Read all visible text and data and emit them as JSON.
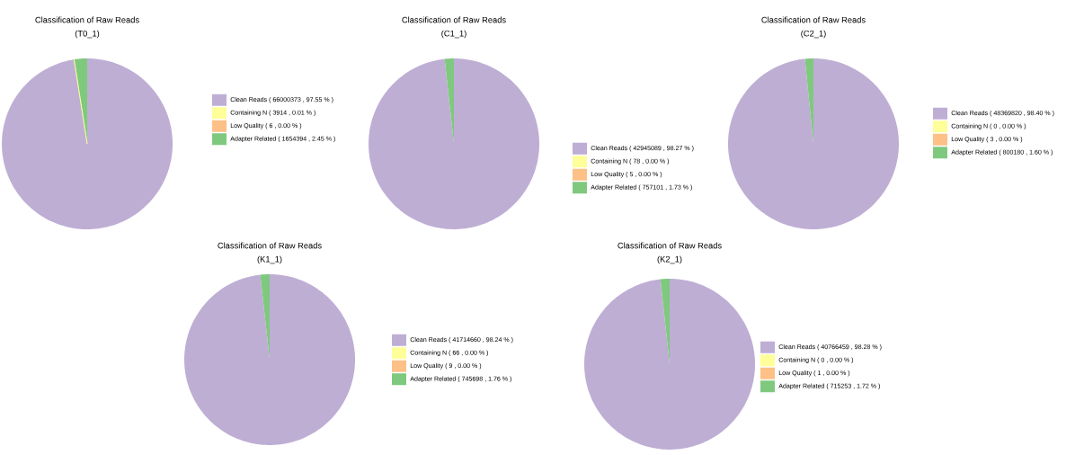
{
  "chart_data": [
    {
      "type": "pie",
      "title": "Classification of Raw Reads",
      "subtitle": "(T0_1)",
      "categories": [
        "Clean Reads",
        "Containing N",
        "Low Quality",
        "Adapter Related"
      ],
      "values": [
        97.55,
        0.01,
        0.0,
        2.45
      ],
      "value_labels": [
        "( 66000373 , 97.55 % )",
        "( 3914 , 0.01 % )",
        "( 6 , 0.00 % )",
        "( 1654394 , 2.45 % )"
      ],
      "colors": [
        "#beaed4",
        "#ffff99",
        "#fdc086",
        "#7fc97f"
      ],
      "legend": "right"
    },
    {
      "type": "pie",
      "title": "Classification of Raw Reads",
      "subtitle": "(C1_1)",
      "categories": [
        "Clean Reads",
        "Containing N",
        "Low Quality",
        "Adapter Related"
      ],
      "values": [
        98.27,
        0.0,
        0.0,
        1.73
      ],
      "value_labels": [
        "( 42945089 , 98.27 % )",
        "( 78 , 0.00 % )",
        "( 5 , 0.00 % )",
        "( 757101 , 1.73 % )"
      ],
      "colors": [
        "#beaed4",
        "#ffff99",
        "#fdc086",
        "#7fc97f"
      ],
      "legend": "right"
    },
    {
      "type": "pie",
      "title": "Classification of Raw Reads",
      "subtitle": "(C2_1)",
      "categories": [
        "Clean Reads",
        "Containing N",
        "Low Quality",
        "Adapter Related"
      ],
      "values": [
        98.4,
        0.0,
        0.0,
        1.6
      ],
      "value_labels": [
        "( 48369820 , 98.40 % )",
        "( 0 , 0.00 % )",
        "( 3 , 0.00 % )",
        "( 800180 , 1.60 % )"
      ],
      "colors": [
        "#beaed4",
        "#ffff99",
        "#fdc086",
        "#7fc97f"
      ],
      "legend": "right"
    },
    {
      "type": "pie",
      "title": "Classification of Raw Reads",
      "subtitle": "(K1_1)",
      "categories": [
        "Clean Reads",
        "Containing N",
        "Low Quality",
        "Adapter Related"
      ],
      "values": [
        98.24,
        0.0,
        0.0,
        1.76
      ],
      "value_labels": [
        "( 41714660 , 98.24 % )",
        "( 66 , 0.00 % )",
        "( 9 , 0.00 % )",
        "( 745698 , 1.76 % )"
      ],
      "colors": [
        "#beaed4",
        "#ffff99",
        "#fdc086",
        "#7fc97f"
      ],
      "legend": "right"
    },
    {
      "type": "pie",
      "title": "Classification of Raw Reads",
      "subtitle": "(K2_1)",
      "categories": [
        "Clean Reads",
        "Containing N",
        "Low Quality",
        "Adapter Related"
      ],
      "values": [
        98.28,
        0.0,
        0.0,
        1.72
      ],
      "value_labels": [
        "( 40766459 , 98.28 % )",
        "( 0 , 0.00 % )",
        "( 1 , 0.00 % )",
        "( 715253 , 1.72 % )"
      ],
      "colors": [
        "#beaed4",
        "#ffff99",
        "#fdc086",
        "#7fc97f"
      ],
      "legend": "right"
    }
  ]
}
